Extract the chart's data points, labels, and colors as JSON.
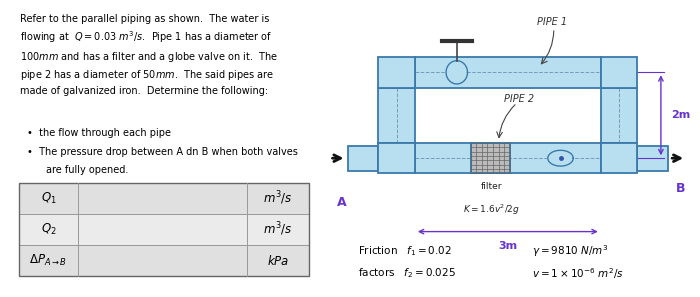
{
  "text_block": {
    "para": "Refer to the parallel piping as shown.  The water is\nflowing at  $Q = 0.03\\ m^3/s$.  Pipe 1 has a diameter of\n100$mm$ and has a filter and a globe valve on it.  The\npipe 2 has a diameter of 50$mm$.  The said pipes are\nmade of galvanized iron.  Determine the following:",
    "bullet1": "the flow through each pipe",
    "bullet2a": "The pressure drop between A dn B when both valves",
    "bullet2b": "are fully opened."
  },
  "table": {
    "rows": [
      {
        "label": "$Q_1$",
        "unit": "$m^3/s$"
      },
      {
        "label": "$Q_2$",
        "unit": "$m^3/s$"
      },
      {
        "label": "$\\Delta P_{A\\rightarrow B}$",
        "unit": "$kPa$"
      }
    ]
  },
  "diagram": {
    "pipe_color": "#b8dff0",
    "pipe_edge": "#3a7aaa",
    "pipe_inner": "#d8f0ff",
    "dim_color": "#6633cc",
    "text_color": "#222222",
    "pipe1_label": "PIPE 1",
    "pipe2_label": "PIPE 2",
    "A_label": "A",
    "B_label": "B",
    "filter_label": "filter",
    "filter_eq": "$K = 1.6v^2/2g$",
    "length_label": "3m",
    "height_label": "2m",
    "friction_line1": "Friction   $f_1 = 0.02$",
    "friction_line2": "factors   $f_2 = 0.025$",
    "gamma_line": "$\\gamma = 9810\\ N/m^3$",
    "nu_line": "$v = 1 \\times 10^{-6}\\ m^2/s$"
  },
  "bg_color": "#ffffff",
  "fig_width": 6.76,
  "fig_height": 2.77
}
